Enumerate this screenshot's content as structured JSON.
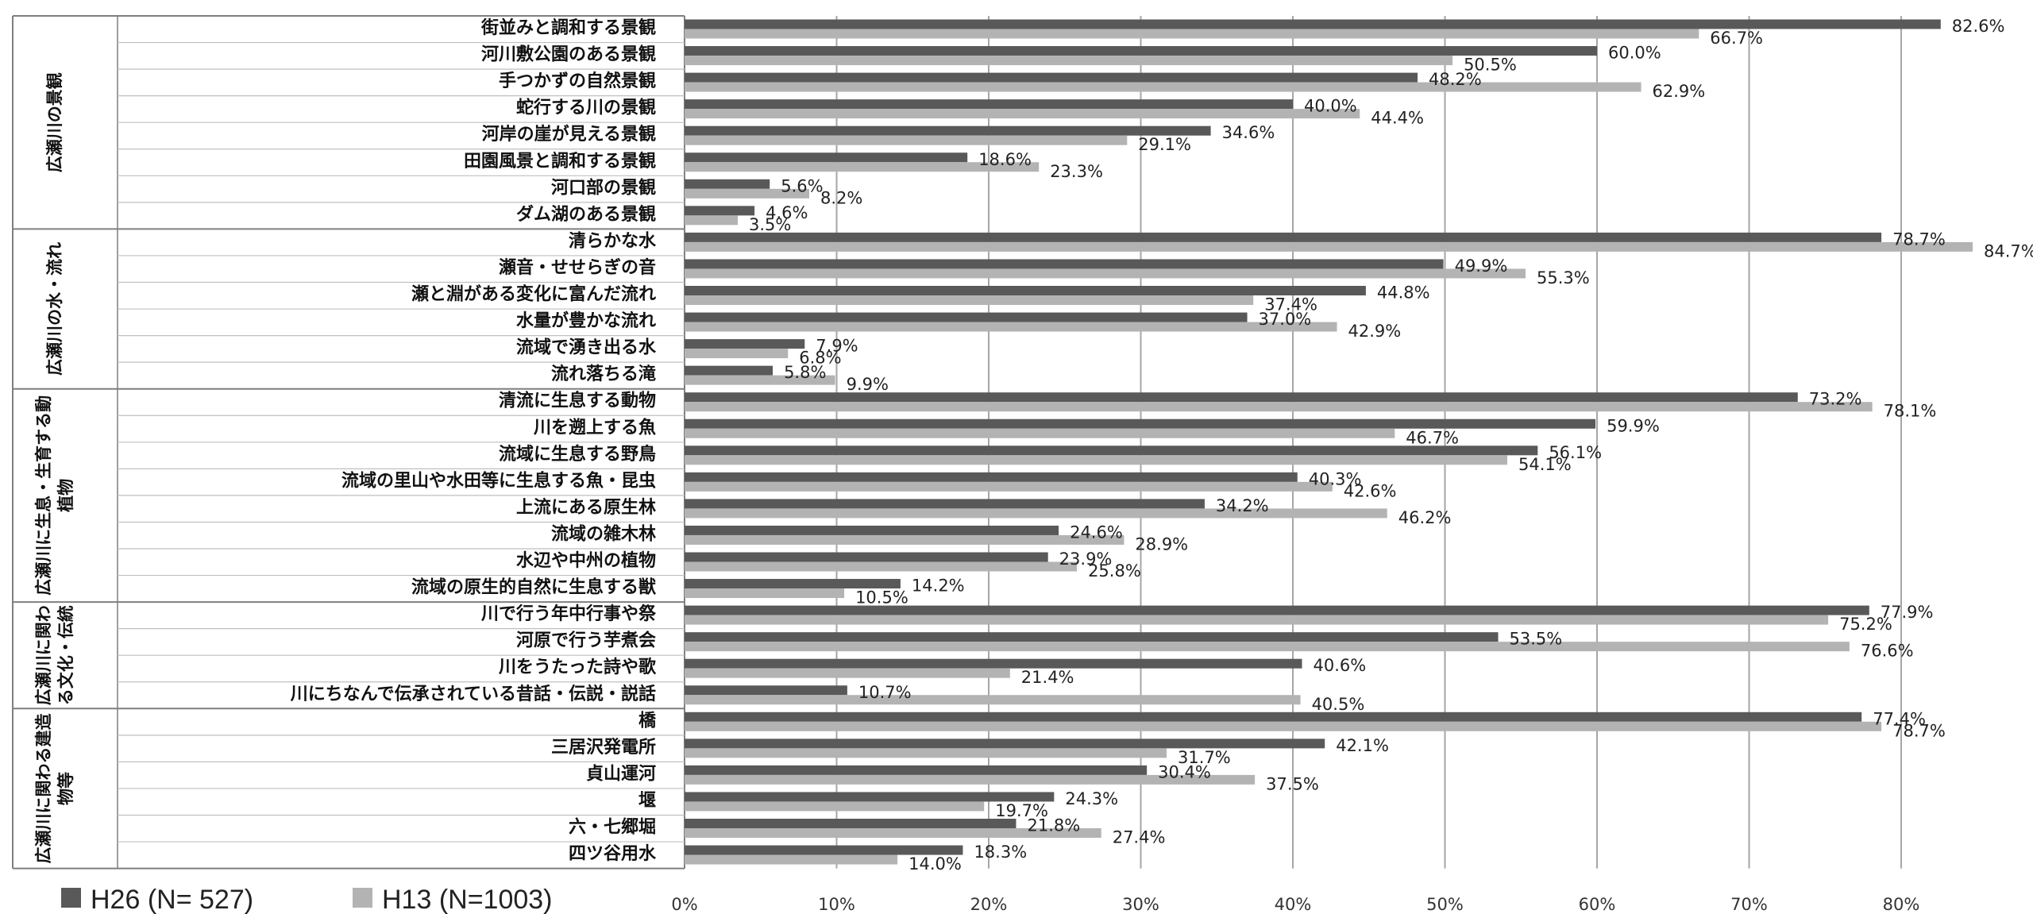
{
  "chart_data": {
    "type": "bar",
    "orientation": "horizontal",
    "title": "",
    "xlabel": "",
    "ylabel": "",
    "xlim": [
      0,
      85
    ],
    "ticks": [
      "0%",
      "10%",
      "20%",
      "30%",
      "40%",
      "50%",
      "60%",
      "70%",
      "80%"
    ],
    "grid": "vertical",
    "legend_position": "bottom-left",
    "colors": {
      "H26": "#595959",
      "H13": "#b3b3b3"
    },
    "groups": [
      {
        "name": "広瀬川の景観",
        "lines": [
          "広瀬川の景観"
        ],
        "categories": [
          {
            "label": "街並みと調和する景観",
            "h26": 82.6,
            "h13": 66.7
          },
          {
            "label": "河川敷公園のある景観",
            "h26": 60.0,
            "h13": 50.5
          },
          {
            "label": "手つかずの自然景観",
            "h26": 48.2,
            "h13": 62.9
          },
          {
            "label": "蛇行する川の景観",
            "h26": 40.0,
            "h13": 44.4
          },
          {
            "label": "河岸の崖が見える景観",
            "h26": 34.6,
            "h13": 29.1
          },
          {
            "label": "田園風景と調和する景観",
            "h26": 18.6,
            "h13": 23.3
          },
          {
            "label": "河口部の景観",
            "h26": 5.6,
            "h13": 8.2
          },
          {
            "label": "ダム湖のある景観",
            "h26": 4.6,
            "h13": 3.5
          }
        ]
      },
      {
        "name": "広瀬川の水・流れ",
        "lines": [
          "広瀬川の水・流れ"
        ],
        "categories": [
          {
            "label": "清らかな水",
            "h26": 78.7,
            "h13": 84.7
          },
          {
            "label": "瀬音・せせらぎの音",
            "h26": 49.9,
            "h13": 55.3
          },
          {
            "label": "瀬と淵がある変化に富んだ流れ",
            "h26": 44.8,
            "h13": 37.4
          },
          {
            "label": "水量が豊かな流れ",
            "h26": 37.0,
            "h13": 42.9
          },
          {
            "label": "流域で湧き出る水",
            "h26": 7.9,
            "h13": 6.8
          },
          {
            "label": "流れ落ちる滝",
            "h26": 5.8,
            "h13": 9.9
          }
        ]
      },
      {
        "name": "広瀬川に生息・生育する動植物",
        "lines": [
          "広瀬川に生息・生育する動",
          "植物"
        ],
        "categories": [
          {
            "label": "清流に生息する動物",
            "h26": 73.2,
            "h13": 78.1
          },
          {
            "label": "川を遡上する魚",
            "h26": 59.9,
            "h13": 46.7
          },
          {
            "label": "流域に生息する野鳥",
            "h26": 56.1,
            "h13": 54.1
          },
          {
            "label": "流域の里山や水田等に生息する魚・昆虫",
            "h26": 40.3,
            "h13": 42.6
          },
          {
            "label": "上流にある原生林",
            "h26": 34.2,
            "h13": 46.2
          },
          {
            "label": "流域の雑木林",
            "h26": 24.6,
            "h13": 28.9
          },
          {
            "label": "水辺や中州の植物",
            "h26": 23.9,
            "h13": 25.8
          },
          {
            "label": "流域の原生的自然に生息する獣",
            "h26": 14.2,
            "h13": 10.5
          }
        ]
      },
      {
        "name": "広瀬川に関わる文化・伝統",
        "lines": [
          "広瀬川に関わ",
          "る文化・伝統"
        ],
        "categories": [
          {
            "label": "川で行う年中行事や祭",
            "h26": 77.9,
            "h13": 75.2
          },
          {
            "label": "河原で行う芋煮会",
            "h26": 53.5,
            "h13": 76.6
          },
          {
            "label": "川をうたった詩や歌",
            "h26": 40.6,
            "h13": 21.4
          },
          {
            "label": "川にちなんで伝承されている昔話・伝説・説話",
            "h26": 10.7,
            "h13": 40.5
          }
        ]
      },
      {
        "name": "広瀬川に関わる建造物等",
        "lines": [
          "広瀬川に関わる建造",
          "物等"
        ],
        "categories": [
          {
            "label": "橋",
            "h26": 77.4,
            "h13": 78.7
          },
          {
            "label": "三居沢発電所",
            "h26": 42.1,
            "h13": 31.7
          },
          {
            "label": "貞山運河",
            "h26": 30.4,
            "h13": 37.5
          },
          {
            "label": "堰",
            "h26": 24.3,
            "h13": 19.7
          },
          {
            "label": "六・七郷堀",
            "h26": 21.8,
            "h13": 27.4
          },
          {
            "label": "四ツ谷用水",
            "h26": 18.3,
            "h13": 14.0
          }
        ]
      }
    ],
    "series": [
      {
        "key": "h26",
        "name": "H26 (N= 527)"
      },
      {
        "key": "h13",
        "name": "H13 (N=1003)"
      }
    ]
  }
}
